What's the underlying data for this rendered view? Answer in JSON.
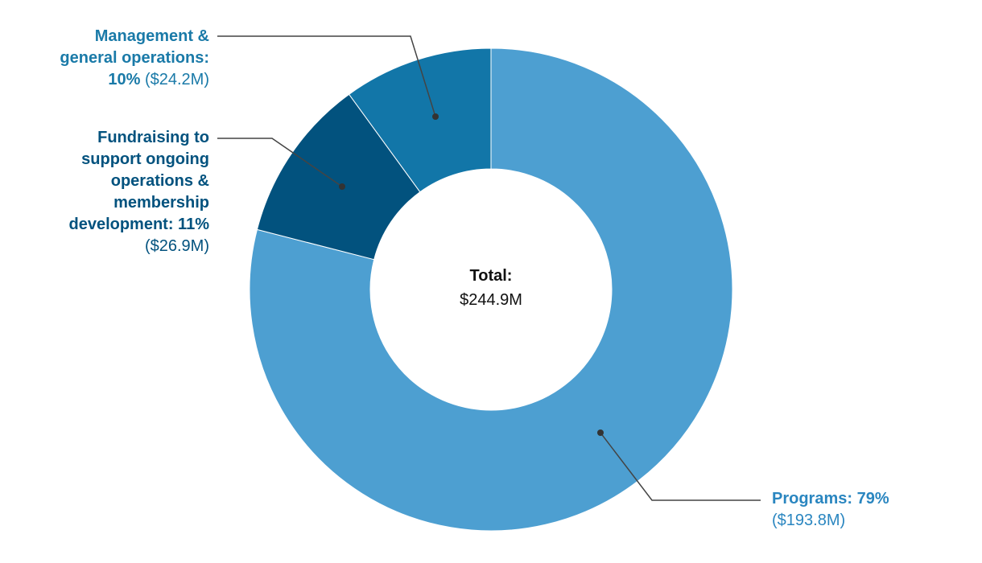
{
  "chart_data": {
    "type": "pie",
    "variant": "donut",
    "center_label": {
      "title": "Total:",
      "value": "$244.9M"
    },
    "slices": [
      {
        "key": "programs",
        "label": "Programs: 79%",
        "amount": "($193.8M)",
        "percent": 79,
        "value": 193.8,
        "color": "#4d9fd1",
        "text_color": "#2a86c0"
      },
      {
        "key": "fundraising",
        "label": "Fundraising to support ongoing operations & membership development: 11%",
        "amount": "($26.9M)",
        "percent": 11,
        "value": 26.9,
        "color": "#02527e",
        "text_color": "#02527e"
      },
      {
        "key": "management",
        "label": "Management & general operations: 10%",
        "amount": "($24.2M)",
        "percent": 10,
        "value": 24.2,
        "color": "#1276a8",
        "text_color": "#1a7aa8"
      }
    ],
    "labels": {
      "management_lines": [
        "Management &",
        "general operations:",
        "10%"
      ],
      "fundraising_lines": [
        "Fundraising to",
        "support ongoing",
        "operations &",
        "membership",
        "development: 11%"
      ],
      "programs_line": "Programs: 79%"
    },
    "start_angle": "top",
    "direction": "clockwise",
    "legend": "none (leader-line labels)"
  }
}
